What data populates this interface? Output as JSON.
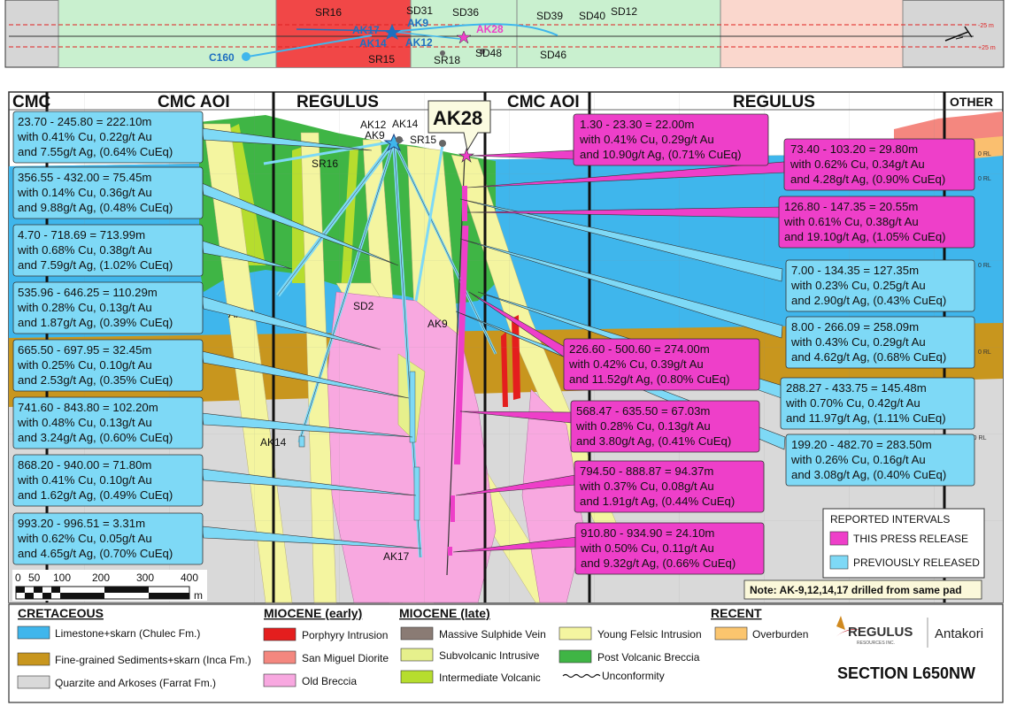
{
  "plan_map": {
    "holes": [
      "SR16",
      "SD31",
      "AK9",
      "SD36",
      "SD39",
      "SD40",
      "SD12",
      "AK28",
      "AK17",
      "AK14",
      "AK12",
      "SR15",
      "SR18",
      "SD48",
      "SD46",
      "C160"
    ],
    "offset_labels": [
      "-25 m",
      "+25 m"
    ]
  },
  "section": {
    "zones": [
      "CMC",
      "CMC AOI",
      "REGULUS",
      "CMC AOI",
      "REGULUS",
      "OTHER"
    ],
    "callout": "AK28",
    "collar_labels": {
      "ak12": "AK12",
      "ak14": "AK14",
      "ak9": "AK9",
      "sr15": "SR15",
      "sr16": "SR16"
    },
    "hole_labels": {
      "ak12": "AK12",
      "sd2": "SD2",
      "ak9": "AK9",
      "ak14": "AK14",
      "ak17": "AK17"
    },
    "rl_marks": [
      "0 RL",
      "0 RL",
      "0 RL",
      "0 RL",
      "2000 RL"
    ]
  },
  "intervals_previous": [
    {
      "l1": "23.70 - 245.80 = 222.10m",
      "l2": "with 0.41% Cu, 0.22g/t Au",
      "l3": "and 7.55g/t Ag, (0.64% CuEq)"
    },
    {
      "l1": "356.55 - 432.00 = 75.45m",
      "l2": "with 0.14% Cu, 0.36g/t Au",
      "l3": "and 9.88g/t Ag, (0.48% CuEq)"
    },
    {
      "l1": "4.70 - 718.69 = 713.99m",
      "l2": "with 0.68% Cu, 0.38g/t Au",
      "l3": "and 7.59g/t Ag, (1.02% CuEq)"
    },
    {
      "l1": "535.96 - 646.25 = 110.29m",
      "l2": "with 0.28% Cu, 0.13g/t Au",
      "l3": "and 1.87g/t Ag, (0.39% CuEq)"
    },
    {
      "l1": "665.50 - 697.95 = 32.45m",
      "l2": "with 0.25% Cu, 0.10g/t Au",
      "l3": "and 2.53g/t Ag, (0.35% CuEq)"
    },
    {
      "l1": "741.60 - 843.80 = 102.20m",
      "l2": "with 0.48% Cu, 0.13g/t Au",
      "l3": "and 3.24g/t Ag, (0.60% CuEq)"
    },
    {
      "l1": "868.20 - 940.00 = 71.80m",
      "l2": "with 0.41% Cu, 0.10g/t Au",
      "l3": "and 1.62g/t Ag, (0.49% CuEq)"
    },
    {
      "l1": "993.20 - 996.51 = 3.31m",
      "l2": "with 0.62% Cu, 0.05g/t Au",
      "l3": "and 4.65g/t Ag, (0.70% CuEq)"
    },
    {
      "l1": "7.00 - 134.35 = 127.35m",
      "l2": "with 0.23% Cu, 0.25g/t Au",
      "l3": "and 2.90g/t Ag, (0.43% CuEq)"
    },
    {
      "l1": "8.00 - 266.09 = 258.09m",
      "l2": "with 0.43% Cu, 0.29g/t Au",
      "l3": "and 4.62g/t Ag, (0.68% CuEq)"
    },
    {
      "l1": "288.27 - 433.75 = 145.48m",
      "l2": "with 0.70% Cu, 0.42g/t Au",
      "l3": "and 11.97g/t Ag, (1.11% CuEq)"
    },
    {
      "l1": "199.20 - 482.70 = 283.50m",
      "l2": "with 0.26% Cu, 0.16g/t Au",
      "l3": "and 3.08g/t Ag, (0.40% CuEq)"
    }
  ],
  "intervals_press": [
    {
      "l1": "1.30 - 23.30 = 22.00m",
      "l2": "with 0.41% Cu, 0.29g/t Au",
      "l3": "and 10.90g/t Ag, (0.71% CuEq)"
    },
    {
      "l1": "73.40 - 103.20 = 29.80m",
      "l2": "with 0.62% Cu, 0.34g/t Au",
      "l3": "and 4.28g/t Ag, (0.90% CuEq)"
    },
    {
      "l1": "126.80 - 147.35 = 20.55m",
      "l2": "with 0.61% Cu, 0.38g/t Au",
      "l3": "and 19.10g/t Ag, (1.05% CuEq)"
    },
    {
      "l1": "226.60 - 500.60 = 274.00m",
      "l2": "with 0.42% Cu, 0.39g/t Au",
      "l3": "and 11.52g/t Ag, (0.80% CuEq)"
    },
    {
      "l1": "568.47 - 635.50 = 67.03m",
      "l2": "with 0.28% Cu, 0.13g/t Au",
      "l3": "and 3.80g/t Ag, (0.41% CuEq)"
    },
    {
      "l1": "794.50 - 888.87 = 94.37m",
      "l2": "with 0.37% Cu, 0.08g/t Au",
      "l3": "and 1.91g/t Ag, (0.44% CuEq)"
    },
    {
      "l1": "910.80 - 934.90 = 24.10m",
      "l2": "with 0.50% Cu, 0.11g/t Au",
      "l3": "and 9.32g/t Ag, (0.66% CuEq)"
    }
  ],
  "reported_legend": {
    "title": "REPORTED INTERVALS",
    "press": "THIS PRESS RELEASE",
    "previous": "PREVIOUSLY RELEASED"
  },
  "note": "Note: AK-9,12,14,17 drilled from same pad",
  "scale_bar": {
    "ticks": [
      "0",
      "50",
      "100",
      "200",
      "300",
      "400"
    ],
    "unit": "m"
  },
  "legend": {
    "cretaceous": {
      "title": "CRETACEOUS",
      "items": [
        "Limestone+skarn (Chulec Fm.)",
        "Fine-grained Sediments+skarn (Inca Fm.)",
        "Quarzite and Arkoses (Farrat Fm.)"
      ]
    },
    "miocene_early": {
      "title": "MIOCENE (early)",
      "items": [
        "Porphyry Intrusion",
        "San Miguel Diorite",
        "Old Breccia"
      ]
    },
    "miocene_late": {
      "title": "MIOCENE (late)",
      "items": [
        "Massive Sulphide Vein",
        "Subvolcanic Intrusive",
        "Intermediate Volcanic",
        "Unconformity",
        "Young Felsic Intrusion",
        "Post Volcanic Breccia"
      ]
    },
    "recent": {
      "title": "RECENT",
      "items": [
        "Overburden"
      ]
    }
  },
  "logos": {
    "regulus": "REGULUS",
    "regulus_sub": "RESOURCES INC.",
    "antakori": "Antakori"
  },
  "section_title": "SECTION L650NW",
  "colors": {
    "limestone": "#3fb6ec",
    "sediments": "#c8961e",
    "quartzite": "#d9d9d9",
    "porphyry": "#e41e1e",
    "diorite": "#f4877f",
    "old_breccia": "#f8a8e0",
    "sulphide": "#8a7b74",
    "subvolcanic": "#e6f08c",
    "intermediate": "#b6dd2e",
    "felsic": "#f4f5a0",
    "post_breccia": "#3fb545",
    "overburden": "#fbc56e",
    "press": "#ee3fc9",
    "previous": "#7ed9f6"
  }
}
